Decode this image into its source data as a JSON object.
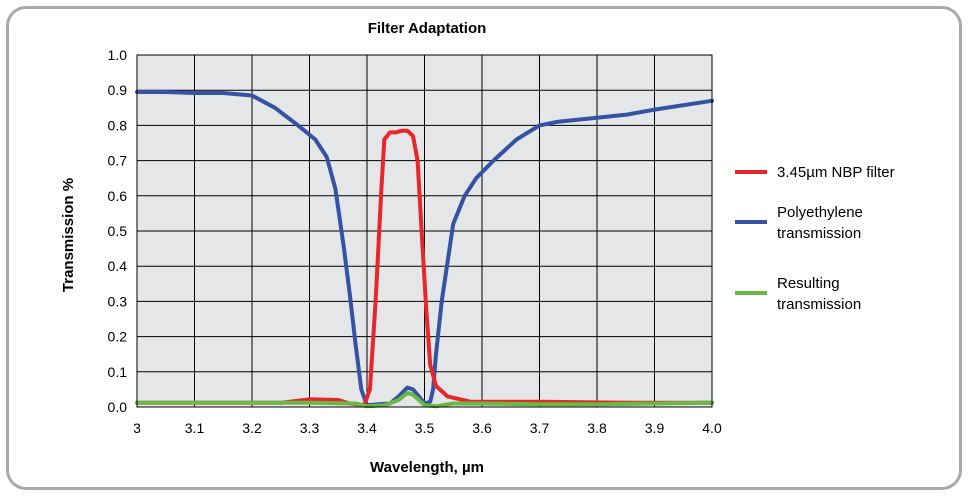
{
  "chart_data": {
    "type": "line",
    "title": "Filter Adaptation",
    "xlabel": "Wavelength, µm",
    "ylabel": "Transmission %",
    "xlim": [
      3.0,
      4.0
    ],
    "ylim": [
      0.0,
      1.0
    ],
    "grid": true,
    "x_ticks": [
      "3",
      "3.1",
      "3.2",
      "3.3",
      "3.4",
      "3.5",
      "3.6",
      "3.7",
      "3.8",
      "3.9",
      "4.0"
    ],
    "y_ticks": [
      "0.0",
      "0.1",
      "0.2",
      "0.3",
      "0.4",
      "0.5",
      "0.6",
      "0.7",
      "0.8",
      "0.9",
      "1.0"
    ],
    "legend_position": "right",
    "series": [
      {
        "name": "3.45µm NBP filter",
        "color": "#e8272a",
        "points": [
          [
            3.0,
            0.012
          ],
          [
            3.25,
            0.012
          ],
          [
            3.3,
            0.022
          ],
          [
            3.35,
            0.02
          ],
          [
            3.37,
            0.01
          ],
          [
            3.395,
            0.005
          ],
          [
            3.405,
            0.05
          ],
          [
            3.415,
            0.3
          ],
          [
            3.425,
            0.62
          ],
          [
            3.43,
            0.76
          ],
          [
            3.44,
            0.78
          ],
          [
            3.45,
            0.78
          ],
          [
            3.46,
            0.785
          ],
          [
            3.47,
            0.785
          ],
          [
            3.48,
            0.77
          ],
          [
            3.488,
            0.7
          ],
          [
            3.495,
            0.5
          ],
          [
            3.503,
            0.28
          ],
          [
            3.51,
            0.12
          ],
          [
            3.52,
            0.06
          ],
          [
            3.54,
            0.03
          ],
          [
            3.58,
            0.015
          ],
          [
            3.7,
            0.015
          ],
          [
            3.85,
            0.012
          ],
          [
            4.0,
            0.012
          ]
        ]
      },
      {
        "name": "Polyethylene transmission",
        "color": "#3552a3",
        "points": [
          [
            3.0,
            0.895
          ],
          [
            3.05,
            0.895
          ],
          [
            3.1,
            0.892
          ],
          [
            3.15,
            0.892
          ],
          [
            3.2,
            0.885
          ],
          [
            3.24,
            0.85
          ],
          [
            3.28,
            0.8
          ],
          [
            3.31,
            0.76
          ],
          [
            3.33,
            0.71
          ],
          [
            3.345,
            0.62
          ],
          [
            3.36,
            0.45
          ],
          [
            3.37,
            0.32
          ],
          [
            3.38,
            0.18
          ],
          [
            3.39,
            0.05
          ],
          [
            3.4,
            0.005
          ],
          [
            3.42,
            0.008
          ],
          [
            3.44,
            0.01
          ],
          [
            3.455,
            0.03
          ],
          [
            3.47,
            0.055
          ],
          [
            3.48,
            0.05
          ],
          [
            3.49,
            0.03
          ],
          [
            3.5,
            0.01
          ],
          [
            3.51,
            0.015
          ],
          [
            3.515,
            0.05
          ],
          [
            3.52,
            0.15
          ],
          [
            3.53,
            0.3
          ],
          [
            3.55,
            0.52
          ],
          [
            3.57,
            0.6
          ],
          [
            3.59,
            0.65
          ],
          [
            3.62,
            0.7
          ],
          [
            3.66,
            0.76
          ],
          [
            3.7,
            0.8
          ],
          [
            3.73,
            0.81
          ],
          [
            3.85,
            0.83
          ],
          [
            3.9,
            0.845
          ],
          [
            4.0,
            0.87
          ]
        ]
      },
      {
        "name": "Resulting transmission",
        "color": "#6ab944",
        "points": [
          [
            3.0,
            0.012
          ],
          [
            3.3,
            0.012
          ],
          [
            3.38,
            0.01
          ],
          [
            3.4,
            0.002
          ],
          [
            3.43,
            0.005
          ],
          [
            3.455,
            0.02
          ],
          [
            3.47,
            0.04
          ],
          [
            3.48,
            0.035
          ],
          [
            3.49,
            0.02
          ],
          [
            3.5,
            0.005
          ],
          [
            3.52,
            0.002
          ],
          [
            3.55,
            0.01
          ],
          [
            3.6,
            0.01
          ],
          [
            3.7,
            0.008
          ],
          [
            3.8,
            0.008
          ],
          [
            4.0,
            0.012
          ]
        ]
      }
    ]
  },
  "legend": {
    "filter_label": "3.45µm NBP filter",
    "poly_line1": "Polyethylene",
    "poly_line2": "transmission",
    "result_line1": "Resulting",
    "result_line2": "transmission"
  }
}
